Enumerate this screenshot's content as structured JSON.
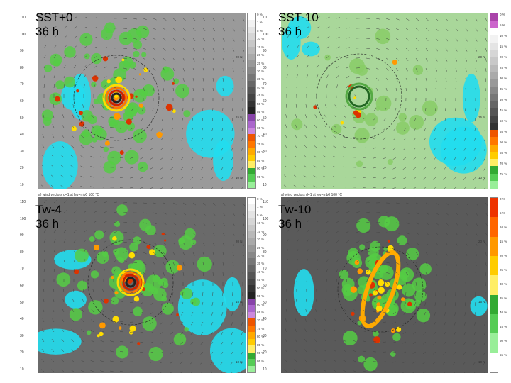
{
  "panels": [
    {
      "id": "sst0",
      "label_line1": "SST+0",
      "label_line2": "36 h",
      "header": "",
      "y_ticks": [
        "110",
        "100",
        "90",
        "80",
        "70",
        "60",
        "50",
        "40",
        "30",
        "20",
        "10"
      ],
      "colorbar_colors": [
        "#ffffff",
        "#f2f2f2",
        "#e4e4e4",
        "#d6d6d6",
        "#c8c8c8",
        "#b9b9b9",
        "#aaaaaa",
        "#999999",
        "#888888",
        "#777777",
        "#666666",
        "#555555",
        "#444444",
        "#333333",
        "#222222",
        "#8844aa",
        "#aa66cc",
        "#cc88dd",
        "#ee5500",
        "#ff7700",
        "#ffaa00",
        "#ffcc00",
        "#ffee66",
        "#33aa33",
        "#55cc55",
        "#99ee99"
      ],
      "colorbar_labels": [
        "0 %",
        "1 %",
        "5 %",
        "10 %",
        "15 %",
        "20 %",
        "25 %",
        "30 %",
        "35 %",
        "40 %",
        "45 %",
        "50 %",
        "55 %",
        "60 %",
        "65 %",
        "70 %",
        "75 %",
        "80 %",
        "85 %",
        "90 %",
        "95 %"
      ],
      "lat_labels": [
        "20 N",
        "15 N",
        "10 N"
      ]
    },
    {
      "id": "sst10",
      "label_line1": "SST-10",
      "label_line2": "36 h",
      "header": "",
      "y_ticks": [
        "110",
        "100",
        "90",
        "80",
        "70",
        "60",
        "50",
        "40",
        "30",
        "20",
        "10"
      ],
      "colorbar_colors": [
        "#aa44aa",
        "#cc66cc",
        "#ffffff",
        "#f2f2f2",
        "#e4e4e4",
        "#d6d6d6",
        "#c8c8c8",
        "#b9b9b9",
        "#aaaaaa",
        "#999999",
        "#888888",
        "#777777",
        "#666666",
        "#555555",
        "#444444",
        "#333333",
        "#ee5500",
        "#ff7700",
        "#ffaa00",
        "#ffcc00",
        "#ffee66",
        "#33aa33",
        "#55cc55",
        "#99ee99"
      ],
      "colorbar_labels": [
        "0 %",
        "5 %",
        "10 %",
        "15 %",
        "20 %",
        "25 %",
        "30 %",
        "35 %",
        "40 %",
        "45 %",
        "50 %",
        "55 %",
        "60 %",
        "65 %",
        "70 %",
        "75 %"
      ],
      "lat_labels": [
        "20 N",
        "15 N",
        "10 N"
      ]
    },
    {
      "id": "tw4",
      "label_line1": "Tw-4",
      "label_line2": "36 h",
      "header": "a) wind vectors    d=1    st lev=mb0    100    °C",
      "y_ticks": [
        "110",
        "100",
        "90",
        "80",
        "70",
        "60",
        "50",
        "40",
        "30",
        "20",
        "10"
      ],
      "colorbar_colors": [
        "#ffffff",
        "#f2f2f2",
        "#e4e4e4",
        "#d6d6d6",
        "#c8c8c8",
        "#b9b9b9",
        "#aaaaaa",
        "#999999",
        "#888888",
        "#777777",
        "#666666",
        "#555555",
        "#444444",
        "#333333",
        "#222222",
        "#8844aa",
        "#aa66cc",
        "#cc88dd",
        "#ee5500",
        "#ff7700",
        "#ffaa00",
        "#ffcc00",
        "#ffee66",
        "#33aa33",
        "#55cc55",
        "#99ee99"
      ],
      "colorbar_labels": [
        "0 %",
        "1 %",
        "5 %",
        "10 %",
        "15 %",
        "20 %",
        "25 %",
        "30 %",
        "35 %",
        "40 %",
        "45 %",
        "50 %",
        "55 %",
        "60 %",
        "65 %",
        "70 %",
        "75 %",
        "80 %",
        "85 %",
        "90 %",
        "95 %"
      ],
      "lat_labels": [
        "20 N",
        "15 N",
        "10 N"
      ]
    },
    {
      "id": "tw10",
      "label_line1": "Tw-10",
      "label_line2": "36 h",
      "header": "a) wind vectors    d=1    st lev=mb0    100    °C",
      "y_ticks": [
        "110",
        "100",
        "90",
        "80",
        "70",
        "60",
        "50",
        "40",
        "30",
        "20",
        "10"
      ],
      "colorbar_colors": [
        "#ee3300",
        "#ff6600",
        "#ff9900",
        "#ffcc00",
        "#ffee66",
        "#33aa33",
        "#55cc55",
        "#99ee99",
        "#ffffff"
      ],
      "colorbar_labels": [
        "0 %",
        "5 %",
        "10 %",
        "15 %",
        "20 %",
        "25 %",
        "30 %",
        "35 %",
        "40 %",
        "45 %",
        "50 %",
        "55 %"
      ],
      "lat_labels": [
        "20 N",
        "15 N",
        "10 N"
      ]
    }
  ]
}
